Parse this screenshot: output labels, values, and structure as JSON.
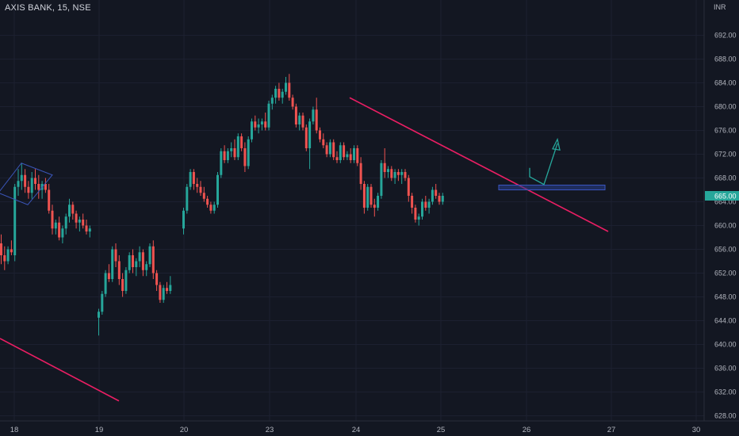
{
  "header": {
    "title": "AXIS BANK, 15, NSE",
    "currency": "INR"
  },
  "chart_data": {
    "type": "candlestick",
    "title": "AXIS BANK, 15, NSE",
    "y_unit": "INR",
    "ylim": [
      626,
      698
    ],
    "y_ticks": [
      "692.00",
      "688.00",
      "684.00",
      "680.00",
      "676.00",
      "672.00",
      "668.00",
      "664.00",
      "660.00",
      "656.00",
      "652.00",
      "648.00",
      "644.00",
      "640.00",
      "636.00",
      "632.00",
      "628.00"
    ],
    "x_ticks": [
      "18",
      "19",
      "20",
      "23",
      "24",
      "25",
      "26",
      "27",
      "30"
    ],
    "last_price": "665.00",
    "colors": {
      "up": "#26a69a",
      "down": "#ef5350",
      "trendline": "#e91e63",
      "zone": "#2a3f8f",
      "arrow": "#26a69a",
      "background": "#131722"
    },
    "candles": [
      [
        657.0,
        658.5,
        653.5,
        655.0
      ],
      [
        655.0,
        656.5,
        652.5,
        654.0
      ],
      [
        654.0,
        656.5,
        653.5,
        656.0
      ],
      [
        656.0,
        657.5,
        655.0,
        655.5
      ],
      [
        655.0,
        667.0,
        654.0,
        666.5
      ],
      [
        666.5,
        669.5,
        665.0,
        667.5
      ],
      [
        667.5,
        670.5,
        666.0,
        668.5
      ],
      [
        668.5,
        669.5,
        665.5,
        666.5
      ],
      [
        666.5,
        667.5,
        664.5,
        665.5
      ],
      [
        665.5,
        669.0,
        664.5,
        668.0
      ],
      [
        668.0,
        669.5,
        666.0,
        667.0
      ],
      [
        667.0,
        668.5,
        664.5,
        666.0
      ],
      [
        666.0,
        667.5,
        664.5,
        667.0
      ],
      [
        667.0,
        668.0,
        665.5,
        666.0
      ],
      [
        666.0,
        667.0,
        662.0,
        662.5
      ],
      [
        662.5,
        663.5,
        658.5,
        659.5
      ],
      [
        659.5,
        661.0,
        658.5,
        660.5
      ],
      [
        660.5,
        661.5,
        657.5,
        658.0
      ],
      [
        658.0,
        660.0,
        657.0,
        659.5
      ],
      [
        659.5,
        662.0,
        658.5,
        661.5
      ],
      [
        661.5,
        664.5,
        660.5,
        663.5
      ],
      [
        663.5,
        664.0,
        661.0,
        662.0
      ],
      [
        662.0,
        662.5,
        659.5,
        660.5
      ],
      [
        660.5,
        661.5,
        659.0,
        661.0
      ],
      [
        661.0,
        662.0,
        659.5,
        660.0
      ],
      [
        660.0,
        661.0,
        658.5,
        659.0
      ],
      [
        659.0,
        660.0,
        658.0,
        659.5
      ],
      [
        644.5,
        646.0,
        641.5,
        645.5
      ],
      [
        645.5,
        649.0,
        645.0,
        648.5
      ],
      [
        648.5,
        652.5,
        648.0,
        652.0
      ],
      [
        652.0,
        653.5,
        650.5,
        651.0
      ],
      [
        651.0,
        656.5,
        650.5,
        656.0
      ],
      [
        656.0,
        657.0,
        653.0,
        654.0
      ],
      [
        654.0,
        655.0,
        650.0,
        651.0
      ],
      [
        651.0,
        652.0,
        648.0,
        649.0
      ],
      [
        649.0,
        653.0,
        648.5,
        652.5
      ],
      [
        652.5,
        655.5,
        652.0,
        655.0
      ],
      [
        655.0,
        656.0,
        652.0,
        653.0
      ],
      [
        653.0,
        654.5,
        651.5,
        654.0
      ],
      [
        654.0,
        656.5,
        653.0,
        655.5
      ],
      [
        655.5,
        656.0,
        651.5,
        652.5
      ],
      [
        652.5,
        654.0,
        651.5,
        653.5
      ],
      [
        653.5,
        657.0,
        653.0,
        656.5
      ],
      [
        656.5,
        657.5,
        651.0,
        652.0
      ],
      [
        652.0,
        652.5,
        649.0,
        650.0
      ],
      [
        650.0,
        650.5,
        647.0,
        647.5
      ],
      [
        647.5,
        650.0,
        647.0,
        649.5
      ],
      [
        649.5,
        650.5,
        648.5,
        649.0
      ],
      [
        649.0,
        651.5,
        648.5,
        650.0
      ],
      [
        659.5,
        663.0,
        658.5,
        662.5
      ],
      [
        662.5,
        667.0,
        662.0,
        666.5
      ],
      [
        666.5,
        669.5,
        666.0,
        669.0
      ],
      [
        669.0,
        669.5,
        666.0,
        667.0
      ],
      [
        667.0,
        668.0,
        665.5,
        666.5
      ],
      [
        666.5,
        667.5,
        665.0,
        665.5
      ],
      [
        665.5,
        666.5,
        664.0,
        664.5
      ],
      [
        664.5,
        665.0,
        663.0,
        663.5
      ],
      [
        663.5,
        664.0,
        662.0,
        662.5
      ],
      [
        662.5,
        664.0,
        662.0,
        663.5
      ],
      [
        663.5,
        669.0,
        663.0,
        668.5
      ],
      [
        668.5,
        673.0,
        668.0,
        672.5
      ],
      [
        672.5,
        673.5,
        670.5,
        671.0
      ],
      [
        671.0,
        673.0,
        670.5,
        672.5
      ],
      [
        672.5,
        674.0,
        671.5,
        673.0
      ],
      [
        673.0,
        674.5,
        671.0,
        671.5
      ],
      [
        671.5,
        675.5,
        671.0,
        675.0
      ],
      [
        675.0,
        675.5,
        672.5,
        673.0
      ],
      [
        673.0,
        674.0,
        669.0,
        670.0
      ],
      [
        670.0,
        675.0,
        669.5,
        674.5
      ],
      [
        674.5,
        678.0,
        674.0,
        677.5
      ],
      [
        677.5,
        678.5,
        676.0,
        676.5
      ],
      [
        676.5,
        678.0,
        675.5,
        677.0
      ],
      [
        677.0,
        678.0,
        676.0,
        677.5
      ],
      [
        677.5,
        679.0,
        676.0,
        676.5
      ],
      [
        676.5,
        681.0,
        676.0,
        680.5
      ],
      [
        680.5,
        682.0,
        679.5,
        681.5
      ],
      [
        681.5,
        683.5,
        680.5,
        683.0
      ],
      [
        683.0,
        684.0,
        681.0,
        681.5
      ],
      [
        681.5,
        683.0,
        680.5,
        682.5
      ],
      [
        682.5,
        685.0,
        682.0,
        684.0
      ],
      [
        684.0,
        685.5,
        681.0,
        681.5
      ],
      [
        681.5,
        682.0,
        679.5,
        680.0
      ],
      [
        680.0,
        680.5,
        676.5,
        677.0
      ],
      [
        677.0,
        679.0,
        676.0,
        678.5
      ],
      [
        678.5,
        679.0,
        676.0,
        676.5
      ],
      [
        676.5,
        677.0,
        672.5,
        673.0
      ],
      [
        673.0,
        678.0,
        669.5,
        677.5
      ],
      [
        677.5,
        680.0,
        677.0,
        679.5
      ],
      [
        679.5,
        681.5,
        675.5,
        676.0
      ],
      [
        676.0,
        676.5,
        674.0,
        674.5
      ],
      [
        674.5,
        675.5,
        673.0,
        673.5
      ],
      [
        673.5,
        674.0,
        671.5,
        672.0
      ],
      [
        672.0,
        674.5,
        671.5,
        674.0
      ],
      [
        674.0,
        674.5,
        671.0,
        671.5
      ],
      [
        671.5,
        672.5,
        670.5,
        671.0
      ],
      [
        671.0,
        674.0,
        670.5,
        673.5
      ],
      [
        673.5,
        674.0,
        671.0,
        671.5
      ],
      [
        671.5,
        672.5,
        671.0,
        672.0
      ],
      [
        672.0,
        673.0,
        670.5,
        671.0
      ],
      [
        671.0,
        673.5,
        670.5,
        673.0
      ],
      [
        673.0,
        673.5,
        670.0,
        670.5
      ],
      [
        670.5,
        671.5,
        666.0,
        667.0
      ],
      [
        667.0,
        667.5,
        662.0,
        663.0
      ],
      [
        663.0,
        667.0,
        662.5,
        666.5
      ],
      [
        666.5,
        667.0,
        663.0,
        663.5
      ],
      [
        663.5,
        664.5,
        661.5,
        663.0
      ],
      [
        663.0,
        665.5,
        662.5,
        665.0
      ],
      [
        665.0,
        671.0,
        664.5,
        670.5
      ],
      [
        670.5,
        673.0,
        668.0,
        669.0
      ],
      [
        669.0,
        670.0,
        668.0,
        669.5
      ],
      [
        669.5,
        670.0,
        667.5,
        668.0
      ],
      [
        668.0,
        669.5,
        667.0,
        669.0
      ],
      [
        669.0,
        669.5,
        667.5,
        668.5
      ],
      [
        668.5,
        669.5,
        667.0,
        669.0
      ],
      [
        669.0,
        669.5,
        667.5,
        668.0
      ],
      [
        668.0,
        668.5,
        664.0,
        665.0
      ],
      [
        665.0,
        665.5,
        662.0,
        663.0
      ],
      [
        663.0,
        663.5,
        660.5,
        661.0
      ],
      [
        661.0,
        662.0,
        660.0,
        661.5
      ],
      [
        661.5,
        664.5,
        661.0,
        664.0
      ],
      [
        664.0,
        665.0,
        662.5,
        663.0
      ],
      [
        663.0,
        664.5,
        662.0,
        664.0
      ],
      [
        664.0,
        666.5,
        663.5,
        666.0
      ],
      [
        666.0,
        667.0,
        664.5,
        665.0
      ],
      [
        665.0,
        665.5,
        663.5,
        664.0
      ],
      [
        664.0,
        665.5,
        663.5,
        665.0
      ]
    ]
  }
}
